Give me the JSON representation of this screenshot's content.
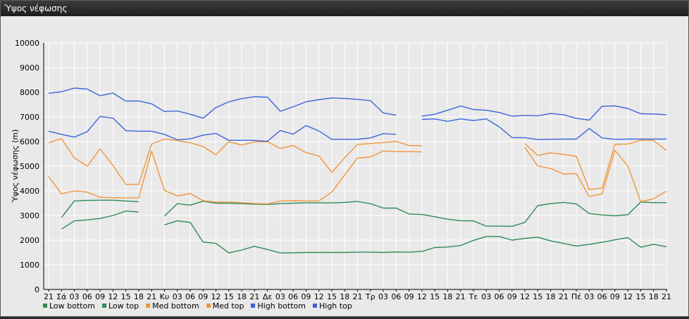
{
  "window": {
    "title": "Ύψος νέφωσης"
  },
  "colors": {
    "low": "#2e8b57",
    "med": "#f0963c",
    "high": "#3c64dc",
    "grid": "#ffffff",
    "background": "#e9e9e9"
  },
  "chart_data": {
    "type": "line",
    "title": "",
    "ylabel": "Ύψος νέφωσης (m)",
    "xlabel": "",
    "ylim": [
      0,
      10000
    ],
    "yticks": [
      0,
      1000,
      2000,
      3000,
      4000,
      5000,
      6000,
      7000,
      8000,
      9000,
      10000
    ],
    "categories": [
      "21",
      "Σά",
      "03",
      "06",
      "09",
      "12",
      "15",
      "18",
      "21",
      "Κυ",
      "03",
      "06",
      "09",
      "12",
      "15",
      "18",
      "21",
      "Δε",
      "03",
      "06",
      "09",
      "12",
      "15",
      "18",
      "21",
      "Τρ",
      "03",
      "06",
      "09",
      "12",
      "15",
      "18",
      "21",
      "Τε",
      "03",
      "06",
      "09",
      "12",
      "15",
      "18",
      "21",
      "Πέ",
      "03",
      "06",
      "09",
      "12",
      "15",
      "18",
      "21"
    ],
    "grid": true,
    "legend_position": "bottom-left",
    "series": [
      {
        "name": "Low bottom",
        "color_key": "low",
        "values": [
          null,
          2450,
          2780,
          2820,
          2880,
          3000,
          3180,
          3140,
          null,
          2620,
          2780,
          2720,
          1920,
          1870,
          1480,
          1600,
          1750,
          1620,
          1480,
          1490,
          1500,
          1500,
          1500,
          1500,
          1510,
          1510,
          1500,
          1520,
          1510,
          1540,
          1700,
          1720,
          1780,
          1990,
          2150,
          2150,
          2000,
          2070,
          2120,
          1970,
          1870,
          1760,
          1830,
          1910,
          2010,
          2100,
          1710,
          1830,
          1730
        ]
      },
      {
        "name": "Low top",
        "color_key": "low",
        "values": [
          null,
          2920,
          3590,
          3610,
          3620,
          3620,
          3590,
          3560,
          null,
          2980,
          3480,
          3420,
          3580,
          3500,
          3500,
          3480,
          3460,
          3450,
          3480,
          3500,
          3510,
          3510,
          3510,
          3530,
          3570,
          3480,
          3300,
          3300,
          3060,
          3040,
          2950,
          2850,
          2790,
          2780,
          2570,
          2570,
          2560,
          2720,
          3400,
          3480,
          3530,
          3470,
          3080,
          3020,
          2990,
          3030,
          3550,
          3520,
          3520
        ]
      },
      {
        "name": "Med bottom",
        "color_key": "med",
        "values": [
          4580,
          3880,
          4000,
          3950,
          3740,
          3720,
          3710,
          3720,
          5620,
          4020,
          3790,
          3890,
          3600,
          3540,
          3550,
          3520,
          3490,
          3470,
          3590,
          3600,
          3590,
          3590,
          3950,
          4650,
          5330,
          5370,
          5620,
          5590,
          5590,
          5580,
          null,
          null,
          null,
          null,
          null,
          null,
          null,
          5760,
          5010,
          4910,
          4680,
          4700,
          3770,
          3880,
          5640,
          5010,
          3560,
          3680,
          3990
        ]
      },
      {
        "name": "Med top",
        "color_key": "med",
        "values": [
          5950,
          6120,
          5340,
          5000,
          5700,
          5030,
          4260,
          4270,
          5900,
          6100,
          6040,
          5950,
          5800,
          5460,
          5990,
          5860,
          5990,
          5990,
          5720,
          5840,
          5550,
          5410,
          4750,
          5340,
          5880,
          5920,
          5960,
          6010,
          5840,
          5830,
          null,
          null,
          null,
          null,
          null,
          null,
          null,
          5920,
          5440,
          5540,
          5480,
          5400,
          4050,
          4110,
          5890,
          5900,
          6050,
          6040,
          5640
        ]
      },
      {
        "name": "High bottom",
        "color_key": "high",
        "values": [
          6420,
          6290,
          6180,
          6400,
          7020,
          6950,
          6440,
          6420,
          6420,
          6290,
          6070,
          6110,
          6260,
          6330,
          6050,
          6050,
          6050,
          6010,
          6450,
          6300,
          6650,
          6430,
          6090,
          6090,
          6090,
          6150,
          6320,
          6290,
          null,
          6900,
          6920,
          6820,
          6920,
          6850,
          6920,
          6600,
          6160,
          6160,
          6080,
          6090,
          6100,
          6100,
          6530,
          6150,
          6090,
          6100,
          6100,
          6100,
          6100
        ]
      },
      {
        "name": "High top",
        "color_key": "high",
        "values": [
          7960,
          8020,
          8170,
          8130,
          7860,
          7970,
          7640,
          7650,
          7530,
          7220,
          7240,
          7110,
          6950,
          7380,
          7610,
          7740,
          7820,
          7800,
          7230,
          7410,
          7610,
          7700,
          7770,
          7750,
          7710,
          7660,
          7160,
          7070,
          null,
          7030,
          7110,
          7270,
          7440,
          7300,
          7270,
          7180,
          7030,
          7060,
          7040,
          7140,
          7090,
          6940,
          6870,
          7430,
          7450,
          7340,
          7130,
          7120,
          7090
        ]
      }
    ]
  }
}
